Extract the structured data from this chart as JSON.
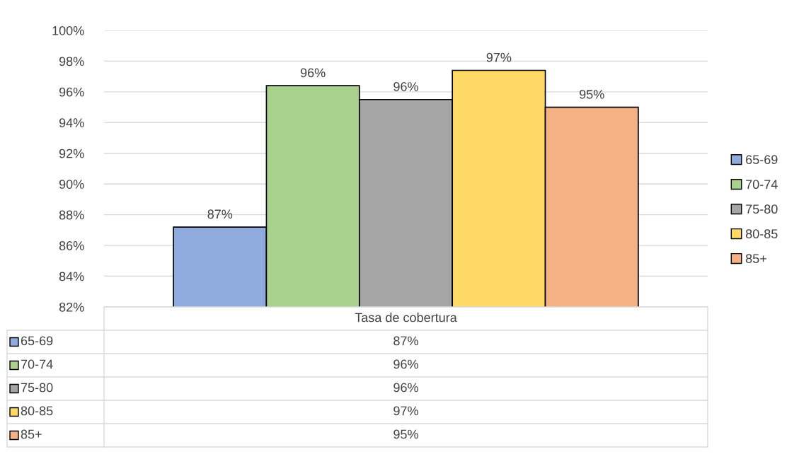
{
  "chart_data": {
    "type": "bar",
    "categories": [
      "Tasa de cobertura"
    ],
    "series": [
      {
        "name": "65-69",
        "color": "#8faadc",
        "values": [
          87.2
        ],
        "value_labels": [
          "87%"
        ]
      },
      {
        "name": "70-74",
        "color": "#a9d18e",
        "values": [
          96.4
        ],
        "value_labels": [
          "96%"
        ]
      },
      {
        "name": "75-80",
        "color": "#a5a5a5",
        "values": [
          95.5
        ],
        "value_labels": [
          "96%"
        ]
      },
      {
        "name": "80-85",
        "color": "#ffd966",
        "values": [
          97.4
        ],
        "value_labels": [
          "97%"
        ]
      },
      {
        "name": "85+",
        "color": "#f4b183",
        "values": [
          95.0
        ],
        "value_labels": [
          "95%"
        ]
      }
    ],
    "ylim": [
      82,
      100
    ],
    "yticks": [
      {
        "value": 82,
        "label": "82%"
      },
      {
        "value": 84,
        "label": "84%"
      },
      {
        "value": 86,
        "label": "86%"
      },
      {
        "value": 88,
        "label": "88%"
      },
      {
        "value": 90,
        "label": "90%"
      },
      {
        "value": 92,
        "label": "92%"
      },
      {
        "value": 94,
        "label": "94%"
      },
      {
        "value": 96,
        "label": "96%"
      },
      {
        "value": 98,
        "label": "98%"
      },
      {
        "value": 100,
        "label": "100%"
      }
    ],
    "grid": "y",
    "legend": "right"
  }
}
